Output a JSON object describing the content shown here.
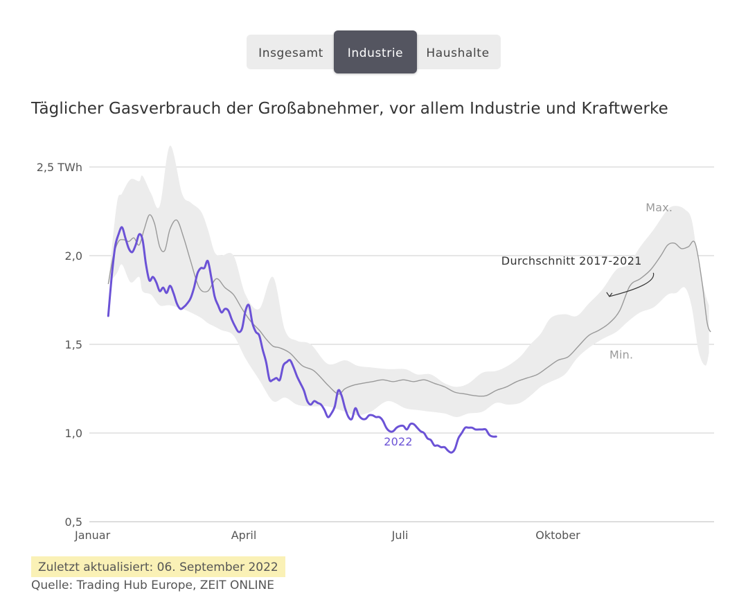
{
  "tabs": {
    "items": [
      "Insgesamt",
      "Industrie",
      "Haushalte"
    ],
    "active": "Industrie"
  },
  "footer": {
    "updated": "Zuletzt aktualisiert: 06. September 2022",
    "source": "Quelle: Trading Hub Europe, ZEIT ONLINE"
  },
  "colors": {
    "line_2022": "#6b52d6",
    "avg": "#999999",
    "band": "#ececec",
    "grid": "#cccccc",
    "label": "#555555",
    "label_gray": "#999999",
    "highlight": "#faf1b6"
  },
  "chart_data": {
    "type": "line",
    "title": "Täglicher Gasverbrauch der Großabnehmer, vor allem Industrie und Kraftwerke",
    "x_unit": "day of year",
    "xlim": [
      1,
      365
    ],
    "ylim": [
      0.5,
      2.5
    ],
    "y_ticks": [
      {
        "value": 2.5,
        "label": "2,5 TWh"
      },
      {
        "value": 2.0,
        "label": "2,0"
      },
      {
        "value": 1.5,
        "label": "1,5"
      },
      {
        "value": 1.0,
        "label": "1,0"
      },
      {
        "value": 0.5,
        "label": "0,5"
      }
    ],
    "x_ticks": [
      {
        "value": 1,
        "label": "Januar"
      },
      {
        "value": 91,
        "label": "April"
      },
      {
        "value": 182,
        "label": "Juli"
      },
      {
        "value": 274,
        "label": "Oktober"
      }
    ],
    "series": [
      {
        "name": "Max./Min. 2017-2021",
        "type": "band",
        "x": [
          12,
          17,
          20,
          25,
          30,
          32,
          37,
          42,
          48,
          55,
          60,
          66,
          70,
          74,
          78,
          85,
          92,
          100,
          108,
          115,
          122,
          130,
          140,
          150,
          157,
          165,
          175,
          185,
          192,
          200,
          208,
          215,
          222,
          230,
          238,
          245,
          252,
          258,
          264,
          270,
          278,
          285,
          292,
          300,
          308,
          315,
          322,
          330,
          338,
          343,
          348,
          352,
          356,
          360,
          362
        ],
        "high": [
          1.84,
          2.29,
          2.35,
          2.43,
          2.42,
          2.45,
          2.35,
          2.28,
          2.62,
          2.35,
          2.3,
          2.25,
          2.15,
          2.02,
          2.0,
          2.0,
          1.78,
          1.7,
          1.88,
          1.58,
          1.52,
          1.5,
          1.39,
          1.41,
          1.38,
          1.37,
          1.36,
          1.36,
          1.33,
          1.33,
          1.28,
          1.26,
          1.28,
          1.34,
          1.35,
          1.38,
          1.43,
          1.5,
          1.56,
          1.65,
          1.67,
          1.66,
          1.73,
          1.81,
          1.92,
          1.95,
          2.05,
          2.15,
          2.26,
          2.28,
          2.26,
          2.2,
          1.95,
          1.78,
          1.72
        ],
        "low": [
          1.84,
          1.9,
          1.95,
          1.85,
          1.88,
          1.8,
          1.78,
          1.72,
          1.72,
          1.7,
          1.68,
          1.65,
          1.62,
          1.6,
          1.58,
          1.55,
          1.42,
          1.3,
          1.18,
          1.2,
          1.16,
          1.15,
          1.15,
          1.12,
          1.1,
          1.12,
          1.18,
          1.14,
          1.13,
          1.12,
          1.11,
          1.09,
          1.11,
          1.12,
          1.17,
          1.16,
          1.17,
          1.21,
          1.26,
          1.29,
          1.33,
          1.42,
          1.48,
          1.53,
          1.57,
          1.63,
          1.68,
          1.71,
          1.78,
          1.79,
          1.82,
          1.71,
          1.46,
          1.38,
          1.45
        ]
      },
      {
        "name": "Durchschnitt 2017-2021",
        "x": [
          12,
          15,
          18,
          21,
          24,
          27,
          30,
          33,
          36,
          39,
          42,
          45,
          48,
          52,
          56,
          60,
          65,
          70,
          75,
          80,
          85,
          90,
          95,
          100,
          104,
          108,
          112,
          118,
          125,
          132,
          140,
          146,
          150,
          155,
          160,
          166,
          172,
          178,
          184,
          190,
          196,
          202,
          208,
          214,
          220,
          226,
          232,
          238,
          244,
          250,
          256,
          262,
          268,
          274,
          280,
          286,
          292,
          298,
          304,
          310,
          316,
          322,
          328,
          334,
          338,
          342,
          346,
          350,
          354,
          358,
          361,
          363
        ],
        "values": [
          1.84,
          2.0,
          2.08,
          2.09,
          2.08,
          2.1,
          2.06,
          2.15,
          2.23,
          2.18,
          2.05,
          2.03,
          2.15,
          2.2,
          2.1,
          1.97,
          1.82,
          1.8,
          1.87,
          1.82,
          1.78,
          1.7,
          1.63,
          1.58,
          1.53,
          1.49,
          1.48,
          1.45,
          1.38,
          1.35,
          1.27,
          1.22,
          1.25,
          1.27,
          1.28,
          1.29,
          1.3,
          1.29,
          1.3,
          1.29,
          1.3,
          1.28,
          1.26,
          1.23,
          1.22,
          1.21,
          1.21,
          1.24,
          1.26,
          1.29,
          1.31,
          1.33,
          1.37,
          1.41,
          1.43,
          1.49,
          1.55,
          1.58,
          1.62,
          1.69,
          1.83,
          1.87,
          1.92,
          2.0,
          2.06,
          2.07,
          2.04,
          2.05,
          2.07,
          1.85,
          1.62,
          1.57
        ]
      },
      {
        "name": "2022",
        "x": [
          12,
          14,
          16,
          18,
          20,
          22,
          24,
          26,
          28,
          30,
          32,
          34,
          36,
          38,
          40,
          42,
          44,
          46,
          48,
          50,
          52,
          54,
          56,
          58,
          60,
          62,
          64,
          66,
          68,
          70,
          72,
          74,
          76,
          78,
          80,
          82,
          84,
          86,
          88,
          90,
          92,
          94,
          96,
          98,
          100,
          102,
          104,
          106,
          108,
          110,
          112,
          114,
          116,
          118,
          120,
          122,
          124,
          126,
          128,
          130,
          132,
          134,
          136,
          138,
          140,
          142,
          144,
          146,
          148,
          150,
          152,
          154,
          156,
          158,
          160,
          162,
          164,
          166,
          168,
          170,
          172,
          174,
          176,
          178,
          180,
          182,
          184,
          186,
          188,
          190,
          192,
          194,
          196,
          198,
          200,
          202,
          204,
          206,
          208,
          210,
          212,
          214,
          216,
          218,
          220,
          222,
          224,
          226,
          228,
          230,
          232,
          234,
          236,
          238
        ],
        "values": [
          1.66,
          1.88,
          2.05,
          2.12,
          2.16,
          2.1,
          2.04,
          2.02,
          2.06,
          2.12,
          2.09,
          1.95,
          1.86,
          1.88,
          1.85,
          1.8,
          1.82,
          1.79,
          1.83,
          1.79,
          1.73,
          1.7,
          1.71,
          1.73,
          1.76,
          1.82,
          1.9,
          1.93,
          1.93,
          1.97,
          1.88,
          1.77,
          1.72,
          1.68,
          1.7,
          1.69,
          1.64,
          1.6,
          1.57,
          1.59,
          1.69,
          1.72,
          1.62,
          1.57,
          1.55,
          1.47,
          1.4,
          1.3,
          1.3,
          1.31,
          1.3,
          1.38,
          1.4,
          1.41,
          1.37,
          1.32,
          1.28,
          1.24,
          1.18,
          1.16,
          1.18,
          1.17,
          1.16,
          1.13,
          1.09,
          1.11,
          1.15,
          1.24,
          1.21,
          1.14,
          1.09,
          1.08,
          1.14,
          1.1,
          1.08,
          1.08,
          1.1,
          1.1,
          1.09,
          1.09,
          1.07,
          1.03,
          1.01,
          1.01,
          1.03,
          1.04,
          1.04,
          1.02,
          1.05,
          1.05,
          1.03,
          1.01,
          1.0,
          0.97,
          0.96,
          0.93,
          0.93,
          0.92,
          0.92,
          0.9,
          0.89,
          0.91,
          0.97,
          1.0,
          1.03,
          1.03,
          1.03,
          1.02,
          1.02,
          1.02,
          1.02,
          0.99,
          0.98,
          0.98
        ]
      }
    ],
    "annotations": [
      {
        "text": "Max.",
        "x": 333,
        "y": 2.25,
        "series": "band-max"
      },
      {
        "text": "Min.",
        "x": 311,
        "y": 1.42,
        "series": "band-min"
      },
      {
        "text": "Durchschnitt 2017-2021",
        "x": 282,
        "y": 1.95,
        "series": "avg",
        "arrow_to": {
          "x": 304,
          "y": 1.77
        }
      },
      {
        "text": "2022",
        "x": 181,
        "y": 0.93,
        "series": "2022"
      }
    ]
  }
}
